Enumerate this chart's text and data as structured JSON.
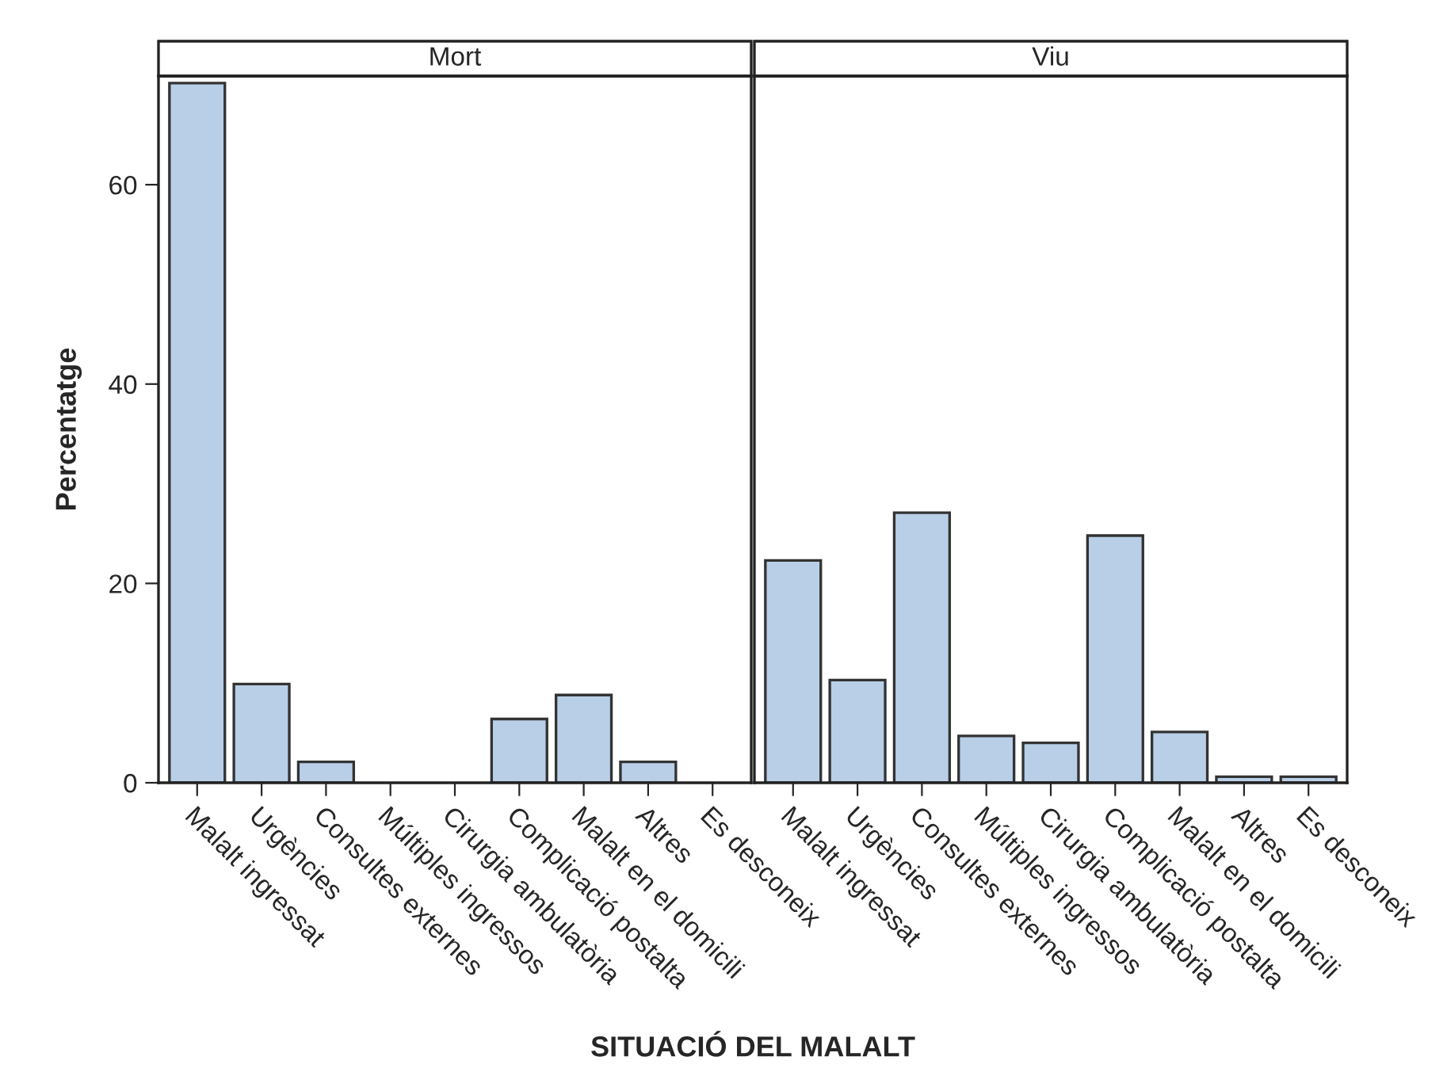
{
  "chart_data": [
    {
      "type": "bar",
      "title": "Mort",
      "ylabel": "Percentatge",
      "xlabel": "SITUACIÓ DEL MALALT",
      "categories": [
        "Malalt ingressat",
        "Urgències",
        "Consultes externes",
        "Múltiples ingressos",
        "Cirurgia ambulatòria",
        "Complicació postalta",
        "Malalt en el domicili",
        "Altres",
        "Es desconeix"
      ],
      "values": [
        70.2,
        9.9,
        2.1,
        0,
        0,
        6.4,
        8.8,
        2.1,
        0
      ],
      "color": "#b9cfe7",
      "ylim": [
        0,
        70.9
      ],
      "yticks": [
        0,
        20,
        40,
        60
      ],
      "grid": false
    },
    {
      "type": "bar",
      "title": "Viu",
      "categories": [
        "Malalt ingressat",
        "Urgències",
        "Consultes externes",
        "Múltiples ingressos",
        "Cirurgia ambulatòria",
        "Complicació postalta",
        "Malalt en el domicili",
        "Altres",
        "Es desconeix"
      ],
      "values": [
        22.3,
        10.3,
        27.1,
        4.7,
        4.0,
        24.8,
        5.1,
        0.6,
        0.6
      ],
      "color": "#b9cfe7",
      "ylim": [
        0,
        70.9
      ],
      "yticks": [
        0,
        20,
        40,
        60
      ],
      "grid": false,
      "tick_labels": "x"
    }
  ]
}
